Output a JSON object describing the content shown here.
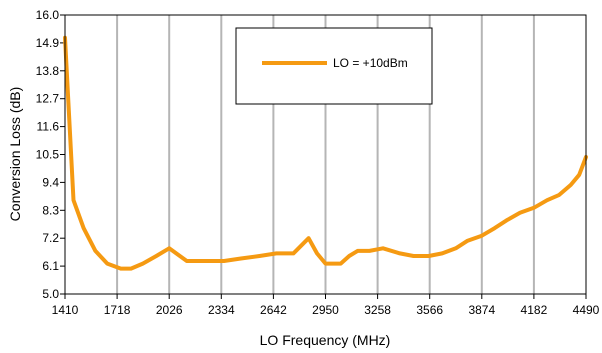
{
  "chart_data": {
    "type": "line",
    "xlabel": "LO Frequency (MHz)",
    "ylabel": "Conversion Loss (dB)",
    "xlim": [
      1410,
      4490
    ],
    "ylim": [
      5.0,
      16.0
    ],
    "x_ticks": [
      1410,
      1718,
      2026,
      2334,
      2642,
      2950,
      3258,
      3566,
      3874,
      4182,
      4490
    ],
    "x_tick_labels": [
      "1410",
      "1718",
      "2026",
      "2334",
      "2642",
      "2950",
      "3258",
      "3566",
      "3874",
      "4182",
      "4490"
    ],
    "y_ticks": [
      5.0,
      6.1,
      7.2,
      8.3,
      9.4,
      10.5,
      11.6,
      12.7,
      13.8,
      14.9,
      16.0
    ],
    "y_tick_labels": [
      "5.0",
      "6.1",
      "7.2",
      "8.3",
      "9.4",
      "10.5",
      "11.6",
      "12.7",
      "13.8",
      "14.9",
      "16.0"
    ],
    "grid": "vertical",
    "legend_position": "top-center",
    "series": [
      {
        "name": "LO = +10dBm",
        "color": "#F59A12",
        "x": [
          1410,
          1460,
          1520,
          1590,
          1660,
          1740,
          1800,
          1870,
          1950,
          2026,
          2130,
          2250,
          2350,
          2450,
          2560,
          2660,
          2760,
          2850,
          2900,
          2950,
          3000,
          3040,
          3090,
          3140,
          3210,
          3290,
          3390,
          3470,
          3560,
          3640,
          3720,
          3790,
          3874,
          3950,
          4020,
          4100,
          4182,
          4260,
          4330,
          4400,
          4450,
          4490
        ],
        "values": [
          15.1,
          8.7,
          7.6,
          6.7,
          6.2,
          6.0,
          6.0,
          6.2,
          6.5,
          6.8,
          6.3,
          6.3,
          6.3,
          6.4,
          6.5,
          6.6,
          6.6,
          7.2,
          6.6,
          6.2,
          6.2,
          6.2,
          6.5,
          6.7,
          6.7,
          6.8,
          6.6,
          6.5,
          6.5,
          6.6,
          6.8,
          7.1,
          7.3,
          7.6,
          7.9,
          8.2,
          8.4,
          8.7,
          8.9,
          9.3,
          9.7,
          10.4
        ]
      }
    ]
  }
}
